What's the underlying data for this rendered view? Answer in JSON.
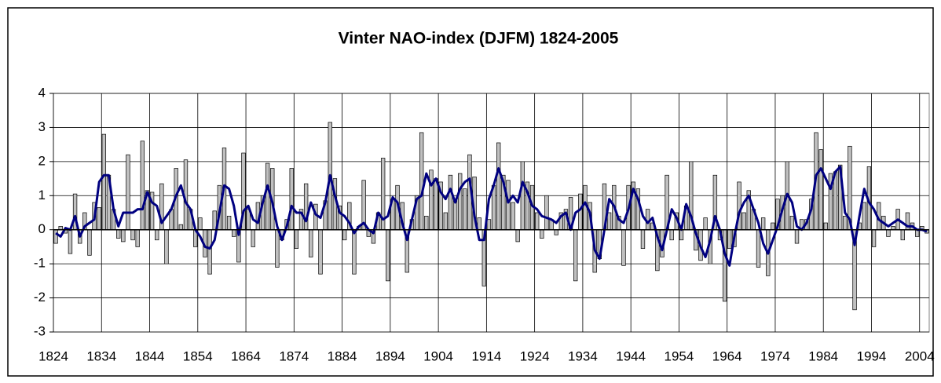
{
  "chart_data": {
    "type": "bar",
    "title": "Vinter NAO-index (DJFM) 1824-2005",
    "x": [
      1824,
      1825,
      1826,
      1827,
      1828,
      1829,
      1830,
      1831,
      1832,
      1833,
      1834,
      1835,
      1836,
      1837,
      1838,
      1839,
      1840,
      1841,
      1842,
      1843,
      1844,
      1845,
      1846,
      1847,
      1848,
      1849,
      1850,
      1851,
      1852,
      1853,
      1854,
      1855,
      1856,
      1857,
      1858,
      1859,
      1860,
      1861,
      1862,
      1863,
      1864,
      1865,
      1866,
      1867,
      1868,
      1869,
      1870,
      1871,
      1872,
      1873,
      1874,
      1875,
      1876,
      1877,
      1878,
      1879,
      1880,
      1881,
      1882,
      1883,
      1884,
      1885,
      1886,
      1887,
      1888,
      1889,
      1890,
      1891,
      1892,
      1893,
      1894,
      1895,
      1896,
      1897,
      1898,
      1899,
      1900,
      1901,
      1902,
      1903,
      1904,
      1905,
      1906,
      1907,
      1908,
      1909,
      1910,
      1911,
      1912,
      1913,
      1914,
      1915,
      1916,
      1917,
      1918,
      1919,
      1920,
      1921,
      1922,
      1923,
      1924,
      1925,
      1926,
      1927,
      1928,
      1929,
      1930,
      1931,
      1932,
      1933,
      1934,
      1935,
      1936,
      1937,
      1938,
      1939,
      1940,
      1941,
      1942,
      1943,
      1944,
      1945,
      1946,
      1947,
      1948,
      1949,
      1950,
      1951,
      1952,
      1953,
      1954,
      1955,
      1956,
      1957,
      1958,
      1959,
      1960,
      1961,
      1962,
      1963,
      1964,
      1965,
      1966,
      1967,
      1968,
      1969,
      1970,
      1971,
      1972,
      1973,
      1974,
      1975,
      1976,
      1977,
      1978,
      1979,
      1980,
      1981,
      1982,
      1983,
      1984,
      1985,
      1986,
      1987,
      1988,
      1989,
      1990,
      1991,
      1992,
      1993,
      1994,
      1995,
      1996,
      1997,
      1998,
      1999,
      2000,
      2001,
      2002,
      2003,
      2004,
      2005
    ],
    "series": [
      {
        "type": "bar",
        "color": "#c0c0c0",
        "values": [
          -0.4,
          0.1,
          -0.1,
          -0.7,
          1.05,
          -0.4,
          0.5,
          -0.75,
          0.8,
          0.65,
          2.8,
          1.6,
          0.6,
          -0.25,
          -0.35,
          2.2,
          -0.3,
          -0.5,
          2.6,
          1.15,
          1.1,
          -0.3,
          1.35,
          -1.0,
          0.6,
          1.8,
          0.15,
          2.05,
          0.6,
          -0.5,
          0.35,
          -0.8,
          -1.3,
          0.55,
          1.3,
          2.4,
          0.4,
          -0.2,
          -0.95,
          2.25,
          0.6,
          -0.5,
          0.8,
          1.0,
          1.95,
          1.8,
          -1.1,
          -0.3,
          0.3,
          1.8,
          -0.55,
          0.6,
          1.35,
          -0.8,
          0.75,
          -1.3,
          0.85,
          3.15,
          1.5,
          0.7,
          -0.3,
          0.8,
          -1.3,
          0.1,
          1.45,
          -0.2,
          -0.4,
          0.5,
          2.1,
          -1.5,
          0.9,
          1.3,
          0.8,
          -1.25,
          0.3,
          1.0,
          2.85,
          0.4,
          1.75,
          1.5,
          1.4,
          0.5,
          1.6,
          0.9,
          1.65,
          1.2,
          2.2,
          1.55,
          0.35,
          -1.65,
          0.3,
          1.3,
          2.55,
          1.6,
          1.45,
          0.8,
          -0.35,
          2.0,
          1.4,
          1.3,
          0.5,
          -0.25,
          1.0,
          0.3,
          -0.15,
          0.5,
          0.6,
          0.95,
          -1.5,
          1.05,
          1.3,
          0.8,
          -1.25,
          -0.85,
          1.35,
          0.5,
          1.3,
          0.4,
          -1.05,
          1.3,
          1.4,
          1.2,
          -0.55,
          0.6,
          0.2,
          -1.2,
          -0.8,
          1.6,
          -0.3,
          0.5,
          -0.3,
          0.7,
          2.0,
          -0.6,
          -0.9,
          0.35,
          -1.0,
          1.6,
          -0.3,
          -2.1,
          -0.55,
          -0.5,
          1.4,
          0.5,
          1.15,
          0.6,
          -1.1,
          0.35,
          -1.35,
          0.2,
          0.9,
          1.0,
          2.0,
          0.4,
          -0.4,
          0.3,
          0.3,
          0.9,
          2.85,
          2.35,
          0.2,
          1.65,
          1.7,
          1.9,
          0.4,
          2.45,
          -2.35,
          0.2,
          0.8,
          1.85,
          -0.5,
          0.8,
          0.4,
          -0.2,
          0.1,
          0.6,
          -0.3,
          0.5,
          0.2,
          -0.2,
          0.1,
          -0.1
        ]
      },
      {
        "type": "line",
        "color": "#000080",
        "values": [
          -0.1,
          -0.2,
          0.05,
          0.0,
          0.4,
          -0.2,
          0.1,
          0.2,
          0.3,
          1.4,
          1.6,
          1.6,
          0.6,
          0.1,
          0.5,
          0.5,
          0.5,
          0.6,
          0.6,
          1.1,
          0.8,
          0.7,
          0.2,
          0.4,
          0.6,
          1.0,
          1.3,
          0.8,
          0.6,
          0.0,
          -0.2,
          -0.5,
          -0.55,
          -0.3,
          0.5,
          1.3,
          1.2,
          0.7,
          -0.15,
          0.55,
          0.7,
          0.3,
          0.2,
          0.8,
          1.3,
          0.8,
          0.1,
          -0.3,
          0.1,
          0.7,
          0.5,
          0.5,
          0.25,
          0.8,
          0.45,
          0.35,
          0.8,
          1.6,
          1.0,
          0.5,
          0.4,
          0.2,
          -0.1,
          0.1,
          0.2,
          0.0,
          -0.1,
          0.5,
          0.3,
          0.4,
          0.95,
          0.8,
          0.2,
          -0.3,
          0.3,
          0.9,
          1.0,
          1.65,
          1.3,
          1.5,
          1.1,
          0.9,
          1.2,
          0.8,
          1.2,
          1.4,
          1.5,
          0.4,
          -0.3,
          -0.3,
          0.9,
          1.3,
          1.8,
          1.4,
          0.8,
          1.0,
          0.8,
          1.4,
          1.1,
          0.7,
          0.6,
          0.4,
          0.35,
          0.3,
          0.2,
          0.4,
          0.5,
          0.0,
          0.5,
          0.6,
          0.8,
          0.5,
          -0.6,
          -0.85,
          0.0,
          0.9,
          0.7,
          0.3,
          0.2,
          0.6,
          1.2,
          0.9,
          0.4,
          0.2,
          0.35,
          -0.2,
          -0.6,
          0.0,
          0.6,
          0.35,
          0.0,
          0.75,
          0.4,
          -0.1,
          -0.5,
          -0.8,
          -0.3,
          0.4,
          0.0,
          -0.7,
          -1.05,
          -0.2,
          0.5,
          0.8,
          1.0,
          0.6,
          0.2,
          -0.4,
          -0.7,
          -0.3,
          0.1,
          0.6,
          1.05,
          0.8,
          0.1,
          0.0,
          0.2,
          0.6,
          1.6,
          1.8,
          1.5,
          1.2,
          1.7,
          1.85,
          0.5,
          0.3,
          -0.45,
          0.4,
          1.2,
          0.8,
          0.6,
          0.3,
          0.2,
          0.1,
          0.2,
          0.3,
          0.2,
          0.1,
          0.1,
          0.0,
          0.0,
          -0.05
        ]
      }
    ],
    "xlim": [
      1824,
      2006
    ],
    "xticks": [
      1824,
      1834,
      1844,
      1854,
      1864,
      1874,
      1884,
      1894,
      1904,
      1914,
      1924,
      1934,
      1944,
      1954,
      1964,
      1974,
      1984,
      1994,
      2004
    ],
    "ylim": [
      -3,
      4
    ],
    "yticks": [
      -3,
      -2,
      -1,
      0,
      1,
      2,
      3,
      4
    ],
    "grid": true
  }
}
